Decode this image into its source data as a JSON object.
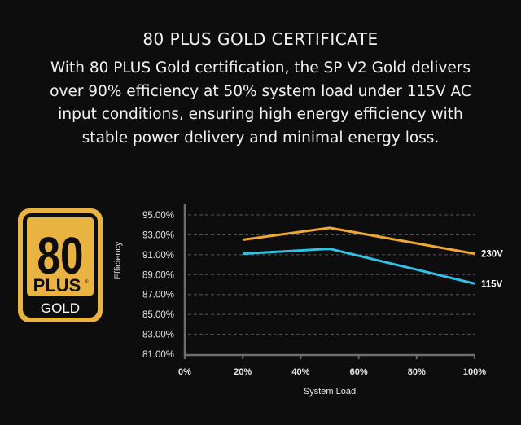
{
  "header": {
    "title": "80 PLUS GOLD CERTIFICATE",
    "description_lines": [
      "With 80 PLUS Gold certification, the SP V2 Gold delivers",
      "over 90% efficiency at 50% system load under 115V AC",
      "input conditions, ensuring high energy efficiency with",
      "stable power delivery and minimal energy loss."
    ]
  },
  "badge": {
    "number": "80",
    "plus": "PLUS",
    "registered": "®",
    "tier": "GOLD",
    "color": "#e8b341"
  },
  "chart_data": {
    "type": "line",
    "title": "",
    "xlabel": "System Load",
    "ylabel": "Efficiency",
    "x_ticks": [
      "0%",
      "20%",
      "40%",
      "60%",
      "80%",
      "100%"
    ],
    "y_ticks": [
      "95.00%",
      "93.00%",
      "91.00%",
      "89.00%",
      "87.00%",
      "85.00%",
      "83.00%",
      "81.00%"
    ],
    "xlim": [
      0,
      100
    ],
    "ylim": [
      81,
      96
    ],
    "grid": true,
    "x": [
      20,
      50,
      100
    ],
    "series": [
      {
        "name": "230V",
        "color": "#f0a830",
        "values": [
          92.5,
          93.7,
          91.1
        ]
      },
      {
        "name": "115V",
        "color": "#2ec4ea",
        "values": [
          91.1,
          91.6,
          88.1
        ]
      }
    ]
  }
}
